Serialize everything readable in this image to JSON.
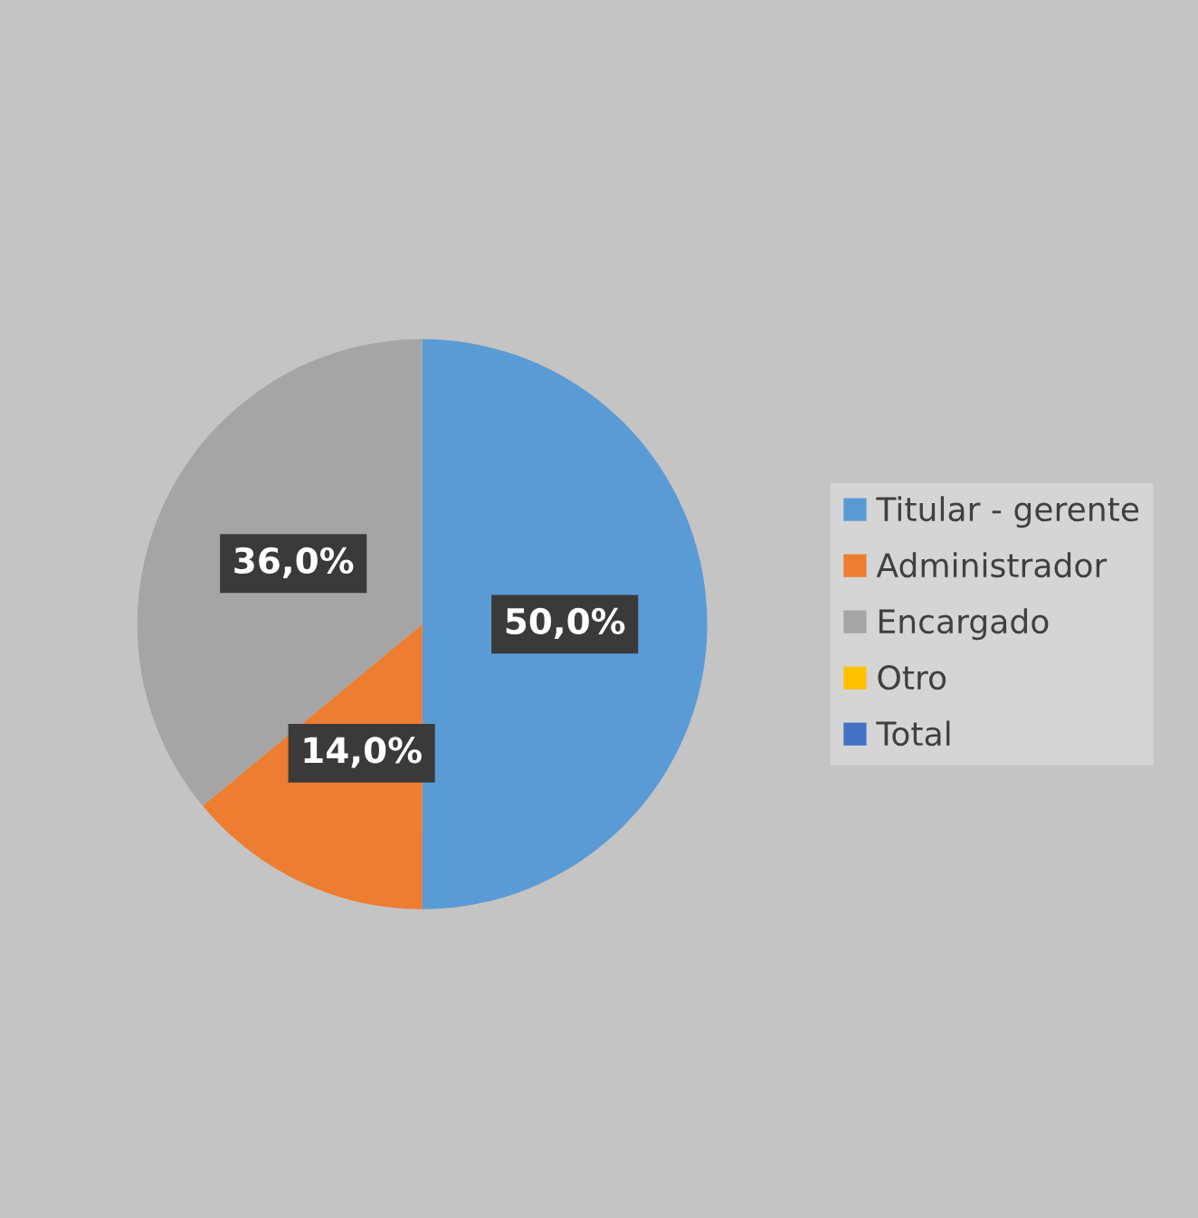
{
  "chart_data": {
    "type": "pie",
    "categories": [
      "Titular - gerente",
      "Administrador",
      "Encargado",
      "Otro",
      "Total"
    ],
    "values": [
      50,
      14,
      36,
      0,
      0
    ],
    "colors": [
      "#5b9bd5",
      "#ed7d31",
      "#a5a5a5",
      "#ffc000",
      "#4472c4"
    ],
    "value_labels": [
      "50,0%",
      "14,0%",
      "36,0%",
      null,
      null
    ],
    "legend": "right"
  }
}
